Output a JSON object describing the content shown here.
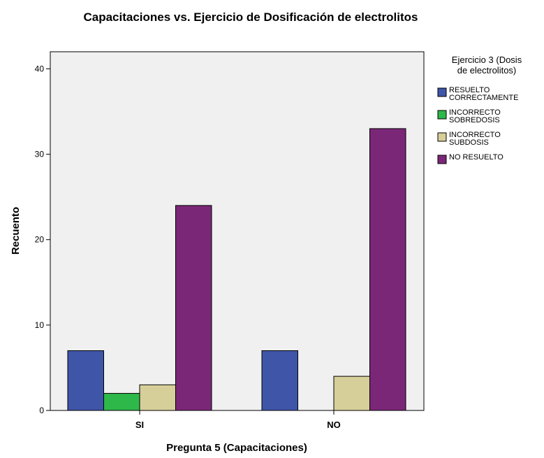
{
  "chart_data": {
    "type": "bar",
    "title": "Capacitaciones vs. Ejercicio de Dosificación de electrolitos",
    "xlabel": "Pregunta 5 (Capacitaciones)",
    "ylabel": "Recuento",
    "categories": [
      "SI",
      "NO"
    ],
    "ylim": [
      0,
      42
    ],
    "yticks": [
      0,
      10,
      20,
      30,
      40
    ],
    "grid": false,
    "legend_position": "right",
    "legend_title": [
      "Ejercicio 3 (Dosis",
      "de electrolitos)"
    ],
    "series": [
      {
        "name": [
          "RESUELTO",
          "CORRECTAMENTE"
        ],
        "color": "#3f55a8",
        "values": [
          7,
          7
        ]
      },
      {
        "name": [
          "INCORRECTO",
          "SOBREDOSIS"
        ],
        "color": "#2eb84a",
        "values": [
          2,
          0
        ]
      },
      {
        "name": [
          "INCORRECTO",
          "SUBDOSIS"
        ],
        "color": "#d7cf9a",
        "values": [
          3,
          4
        ]
      },
      {
        "name": [
          "NO RESUELTO"
        ],
        "color": "#7b2778",
        "values": [
          24,
          33
        ]
      }
    ],
    "plot_background": "#f0f0f0"
  }
}
